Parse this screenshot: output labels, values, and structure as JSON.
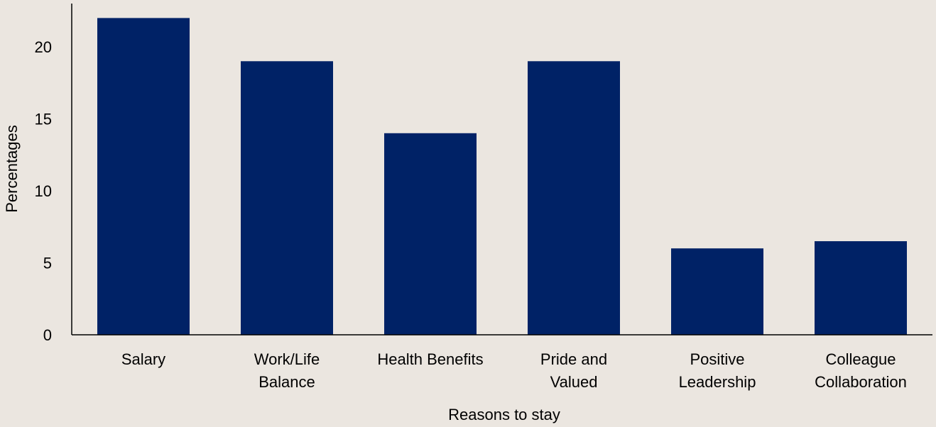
{
  "chart_data": {
    "type": "bar",
    "categories": [
      "Salary",
      "Work/Life Balance",
      "Health Benefits",
      "Pride and Valued",
      "Positive Leadership",
      "Colleague Collaboration"
    ],
    "category_label_lines": [
      [
        "Salary"
      ],
      [
        "Work/Life",
        "Balance"
      ],
      [
        "Health Benefits"
      ],
      [
        "Pride and",
        "Valued"
      ],
      [
        "Positive",
        "Leadership"
      ],
      [
        "Colleague",
        "Collaboration"
      ]
    ],
    "values": [
      22,
      19,
      14,
      19,
      6,
      6.5
    ],
    "title": "",
    "xlabel": "Reasons to stay",
    "ylabel": "Percentages",
    "ylim": [
      0,
      23
    ],
    "yticks": [
      0,
      5,
      10,
      15,
      20
    ],
    "grid": false,
    "legend": "none",
    "bar_color": "#002266",
    "background_color": "#ebe6e0"
  }
}
